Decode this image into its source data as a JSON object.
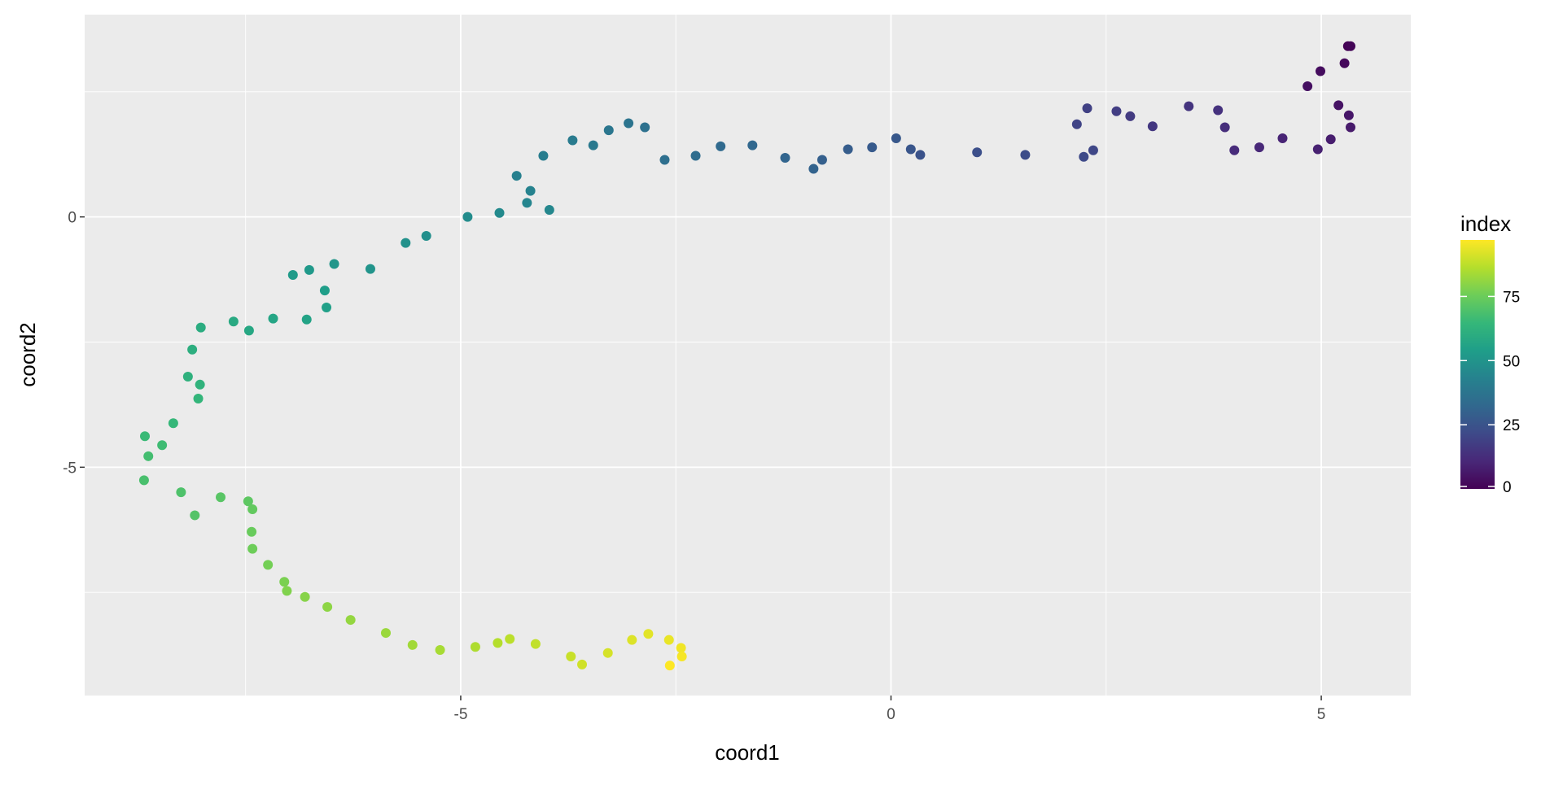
{
  "chart_data": {
    "type": "scatter",
    "title": "",
    "xlabel": "coord1",
    "ylabel": "coord2",
    "xlim": [
      -9.37,
      6.04
    ],
    "ylim": [
      -9.56,
      4.04
    ],
    "x_ticks": [
      -5,
      0,
      5
    ],
    "x_tick_labels": [
      "-5",
      "0",
      "5"
    ],
    "y_ticks": [
      0,
      -5
    ],
    "y_tick_labels": [
      "0",
      "-5"
    ],
    "x_minor": [
      -7.5,
      -2.5,
      2.5
    ],
    "y_minor": [
      2.5,
      -2.5,
      -7.5
    ],
    "grid": true,
    "color_by": "index",
    "legend": {
      "title": "index",
      "placement": "right",
      "ticks": [
        0,
        25,
        50,
        75
      ],
      "tick_labels": [
        "0",
        "25",
        "50",
        "75"
      ],
      "range": [
        0,
        99
      ],
      "colormap": [
        "#440154",
        "#482878",
        "#3E4A89",
        "#31688E",
        "#26828E",
        "#1F9E89",
        "#35B779",
        "#6DCD59",
        "#B4DE2C",
        "#FDE725"
      ]
    },
    "panel_background": "#EBEBEB",
    "points": [
      [
        5.31,
        3.41
      ],
      [
        5.34,
        3.41
      ],
      [
        5.27,
        3.07
      ],
      [
        4.99,
        2.91
      ],
      [
        4.84,
        2.61
      ],
      [
        5.2,
        2.23
      ],
      [
        5.32,
        2.03
      ],
      [
        5.34,
        1.79
      ],
      [
        5.11,
        1.55
      ],
      [
        4.96,
        1.35
      ],
      [
        4.55,
        1.57
      ],
      [
        4.28,
        1.39
      ],
      [
        3.99,
        1.33
      ],
      [
        3.88,
        1.79
      ],
      [
        3.8,
        2.13
      ],
      [
        3.46,
        2.21
      ],
      [
        3.04,
        1.81
      ],
      [
        2.78,
        2.01
      ],
      [
        2.62,
        2.11
      ],
      [
        2.28,
        2.17
      ],
      [
        2.16,
        1.85
      ],
      [
        2.35,
        1.33
      ],
      [
        2.24,
        1.2
      ],
      [
        1.56,
        1.24
      ],
      [
        1.0,
        1.29
      ],
      [
        0.34,
        1.24
      ],
      [
        0.23,
        1.35
      ],
      [
        0.06,
        1.57
      ],
      [
        -0.22,
        1.39
      ],
      [
        -0.5,
        1.35
      ],
      [
        -0.8,
        1.14
      ],
      [
        -0.9,
        0.96
      ],
      [
        -1.23,
        1.18
      ],
      [
        -1.61,
        1.43
      ],
      [
        -1.98,
        1.41
      ],
      [
        -2.27,
        1.22
      ],
      [
        -2.63,
        1.14
      ],
      [
        -2.86,
        1.79
      ],
      [
        -3.05,
        1.87
      ],
      [
        -3.28,
        1.73
      ],
      [
        -3.46,
        1.43
      ],
      [
        -3.7,
        1.53
      ],
      [
        -4.04,
        1.22
      ],
      [
        -4.35,
        0.82
      ],
      [
        -4.19,
        0.52
      ],
      [
        -4.23,
        0.28
      ],
      [
        -3.97,
        0.14
      ],
      [
        -4.55,
        0.08
      ],
      [
        -4.92,
        0.0
      ],
      [
        -5.4,
        -0.38
      ],
      [
        -5.64,
        -0.52
      ],
      [
        -6.05,
        -1.04
      ],
      [
        -6.47,
        -0.94
      ],
      [
        -6.76,
        -1.06
      ],
      [
        -6.95,
        -1.16
      ],
      [
        -6.58,
        -1.47
      ],
      [
        -6.56,
        -1.81
      ],
      [
        -6.79,
        -2.05
      ],
      [
        -7.18,
        -2.03
      ],
      [
        -7.46,
        -2.27
      ],
      [
        -7.64,
        -2.09
      ],
      [
        -8.02,
        -2.21
      ],
      [
        -8.12,
        -2.65
      ],
      [
        -8.17,
        -3.19
      ],
      [
        -8.03,
        -3.35
      ],
      [
        -8.05,
        -3.63
      ],
      [
        -8.34,
        -4.12
      ],
      [
        -8.67,
        -4.38
      ],
      [
        -8.47,
        -4.56
      ],
      [
        -8.63,
        -4.78
      ],
      [
        -8.68,
        -5.26
      ],
      [
        -8.25,
        -5.5
      ],
      [
        -8.09,
        -5.96
      ],
      [
        -7.79,
        -5.6
      ],
      [
        -7.47,
        -5.68
      ],
      [
        -7.42,
        -5.84
      ],
      [
        -7.43,
        -6.29
      ],
      [
        -7.42,
        -6.63
      ],
      [
        -7.24,
        -6.95
      ],
      [
        -7.05,
        -7.29
      ],
      [
        -7.02,
        -7.47
      ],
      [
        -6.81,
        -7.59
      ],
      [
        -6.55,
        -7.79
      ],
      [
        -6.28,
        -8.05
      ],
      [
        -5.87,
        -8.31
      ],
      [
        -5.56,
        -8.55
      ],
      [
        -5.24,
        -8.65
      ],
      [
        -4.83,
        -8.59
      ],
      [
        -4.57,
        -8.51
      ],
      [
        -4.43,
        -8.43
      ],
      [
        -4.13,
        -8.53
      ],
      [
        -3.72,
        -8.78
      ],
      [
        -3.59,
        -8.94
      ],
      [
        -3.29,
        -8.71
      ],
      [
        -3.01,
        -8.45
      ],
      [
        -2.82,
        -8.33
      ],
      [
        -2.58,
        -8.45
      ],
      [
        -2.44,
        -8.61
      ],
      [
        -2.43,
        -8.78
      ],
      [
        -2.57,
        -8.96
      ]
    ]
  }
}
